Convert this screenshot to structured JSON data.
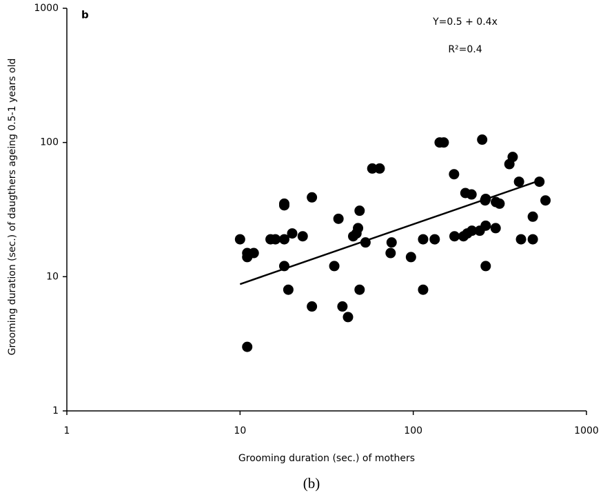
{
  "chart_data": {
    "type": "scatter",
    "panel_label": "b",
    "xlabel": "Grooming duration (sec.) of mothers",
    "ylabel": "Grooming duration (sec.) of daugthers ageing 0.5-1 years old",
    "annotations": [
      "Y=0.5 + 0.4x",
      "R²=0.4"
    ],
    "caption": "(b)",
    "xscale": "log",
    "yscale": "log",
    "xlim": [
      1,
      1000
    ],
    "ylim": [
      1,
      1000
    ],
    "xticks": [
      1,
      10,
      100,
      1000
    ],
    "yticks": [
      1,
      10,
      100,
      1000
    ],
    "grid": false,
    "color": "#000000",
    "x": [
      10,
      11,
      11,
      12,
      11,
      15,
      16,
      18,
      18,
      18,
      18,
      19,
      20,
      23,
      26,
      26,
      35,
      37,
      39,
      42,
      45,
      47,
      48,
      49,
      49,
      53,
      58,
      64,
      75,
      74,
      97,
      114,
      114,
      133,
      142,
      150,
      172,
      173,
      195,
      200,
      205,
      217,
      218,
      242,
      250,
      260,
      262,
      262,
      262,
      299,
      300,
      315,
      359,
      375,
      408,
      419,
      490,
      490,
      535,
      580
    ],
    "y": [
      19,
      15,
      14,
      15,
      3,
      19,
      19,
      19,
      12,
      35,
      34,
      8,
      21,
      20,
      39,
      6,
      12,
      27,
      6,
      5,
      20,
      21,
      23,
      31,
      8,
      18,
      64,
      64,
      18,
      15,
      14,
      19,
      8,
      19,
      100,
      100,
      58,
      20,
      20,
      42,
      21,
      41,
      22,
      22,
      105,
      37,
      38,
      24,
      12,
      23,
      36,
      35,
      69,
      78,
      51,
      19,
      28,
      19,
      51,
      37
    ],
    "trendline": {
      "x": [
        10,
        535
      ],
      "y": [
        8.8,
        52
      ]
    }
  }
}
